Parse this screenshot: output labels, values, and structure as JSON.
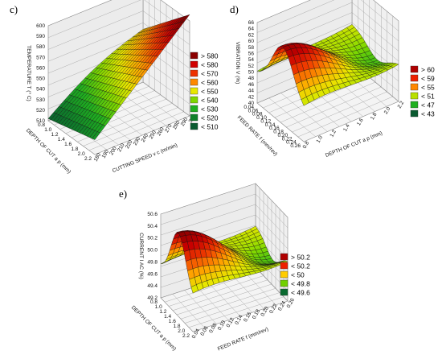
{
  "chart_data": [
    {
      "panel": "c)",
      "type": "surface3d",
      "axes": {
        "z": {
          "label": "TEMPERATURE T (° C)",
          "ticks": [
            "510",
            "520",
            "530",
            "540",
            "550",
            "560",
            "570",
            "580",
            "590",
            "600"
          ],
          "range": [
            510,
            600
          ]
        },
        "x": {
          "label": "DEPTH OF CUT a p (mm)",
          "ticks": [
            "0.8",
            "1.0",
            "1.2",
            "1.4",
            "1.6",
            "1.8",
            "2.0",
            "2.2"
          ],
          "range": [
            0.8,
            2.2
          ]
        },
        "y": {
          "label": "CUTTING SPEED v c (m/min)",
          "ticks": [
            "180",
            "190",
            "200",
            "210",
            "220",
            "230",
            "240",
            "250",
            "260",
            "270",
            "280",
            "290",
            "300"
          ],
          "range": [
            180,
            300
          ]
        }
      },
      "surface": {
        "z_at_corners": {
          "x_min_y_min": 512,
          "x_max_y_min": 524,
          "x_min_y_max": 560,
          "x_max_y_max": 606
        }
      },
      "legend": [
        {
          "label": "> 580",
          "color": "#8b0000"
        },
        {
          "label": "< 580",
          "color": "#d10000"
        },
        {
          "label": "< 570",
          "color": "#ee3000"
        },
        {
          "label": "< 560",
          "color": "#ff8800"
        },
        {
          "label": "< 550",
          "color": "#e8e800"
        },
        {
          "label": "< 540",
          "color": "#80d800"
        },
        {
          "label": "< 530",
          "color": "#20b020"
        },
        {
          "label": "< 520",
          "color": "#10802a"
        },
        {
          "label": "< 510",
          "color": "#0a5a30"
        }
      ]
    },
    {
      "panel": "d)",
      "type": "surface3d",
      "axes": {
        "z": {
          "label": "VIBRATION V (%)",
          "ticks": [
            "40",
            "42",
            "44",
            "46",
            "48",
            "50",
            "52",
            "54",
            "56",
            "58",
            "60",
            "62",
            "64",
            "66"
          ],
          "range": [
            40,
            66
          ]
        },
        "x": {
          "label": "FEED RATE f (mm/rev)",
          "ticks": [
            "0.04",
            "0.06",
            "0.08",
            "0.10",
            "0.12",
            "0.14",
            "0.16",
            "0.18",
            "0.20",
            "0.22",
            "0.24",
            "0.26"
          ],
          "range": [
            0.04,
            0.26
          ]
        },
        "y": {
          "label": "DEPTH OF CUT a p (mm)",
          "ticks": [
            "0.8",
            "1.0",
            "1.2",
            "1.4",
            "1.6",
            "1.8",
            "2.0",
            "2.2"
          ],
          "range": [
            0.8,
            2.2
          ]
        }
      },
      "surface": {
        "shape": "saddle",
        "z_peak": 65,
        "z_min": 42
      },
      "legend": [
        {
          "label": "> 60",
          "color": "#b00000"
        },
        {
          "label": "< 59",
          "color": "#ee2000"
        },
        {
          "label": "< 55",
          "color": "#ff8800"
        },
        {
          "label": "< 51",
          "color": "#b8e000"
        },
        {
          "label": "< 47",
          "color": "#20b020"
        },
        {
          "label": "< 43",
          "color": "#0a5a30"
        }
      ]
    },
    {
      "panel": "e)",
      "type": "surface3d",
      "axes": {
        "z": {
          "label": "CURRENT I AC (%)",
          "ticks": [
            "49.2",
            "49.4",
            "49.6",
            "49.8",
            "50.0",
            "50.2",
            "50.4",
            "50.6"
          ],
          "range": [
            49.2,
            50.6
          ]
        },
        "x": {
          "label": "DEPTH OF CUT a p (mm)",
          "ticks": [
            "0.8",
            "1.0",
            "1.2",
            "1.4",
            "1.6",
            "1.8",
            "2.0",
            "2.2"
          ],
          "range": [
            0.8,
            2.2
          ]
        },
        "y": {
          "label": "FEED RATE f (mm/rev)",
          "ticks": [
            "0.04",
            "0.06",
            "0.08",
            "0.10",
            "0.12",
            "0.14",
            "0.16",
            "0.18",
            "0.20",
            "0.22",
            "0.24",
            "0.26"
          ],
          "range": [
            0.04,
            0.26
          ]
        }
      },
      "surface": {
        "shape": "saddle",
        "z_peak": 50.6,
        "z_min": 49.3
      },
      "legend": [
        {
          "label": "> 50.2",
          "color": "#b00000"
        },
        {
          "label": "< 50.2",
          "color": "#ee2000"
        },
        {
          "label": "< 50",
          "color": "#ffcc00"
        },
        {
          "label": "< 49.8",
          "color": "#70d000"
        },
        {
          "label": "< 49.6",
          "color": "#0a6a30"
        }
      ]
    }
  ]
}
